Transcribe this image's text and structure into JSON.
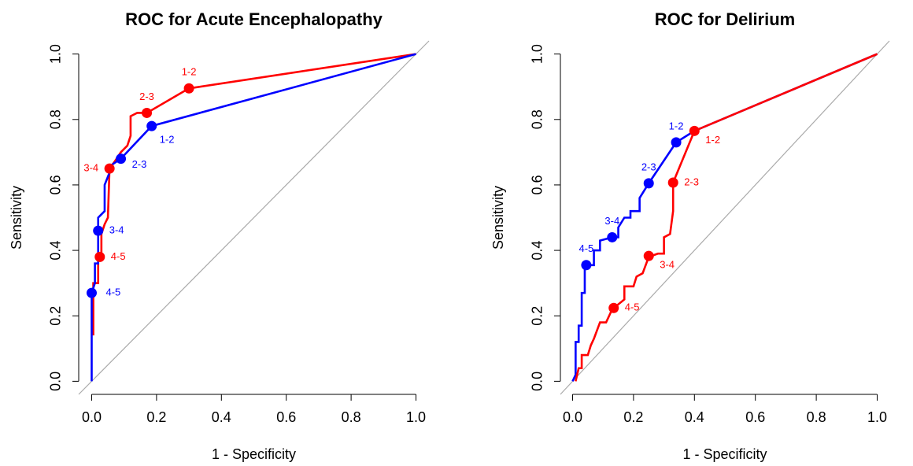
{
  "chart_data": [
    {
      "type": "line",
      "title": "ROC for Acute Encephalopathy",
      "xlabel": "1 - Specificity",
      "ylabel": "Sensitivity",
      "xlim": [
        -0.04,
        1.04
      ],
      "ylim": [
        -0.04,
        1.04
      ],
      "xticks": [
        {
          "value": 0,
          "label": "0.0"
        },
        0.2,
        0.4,
        0.6,
        0.8,
        {
          "value": 1,
          "label": "1.0"
        }
      ],
      "yticks": [
        {
          "value": 0,
          "label": "0.0"
        },
        0.2,
        0.4,
        0.6,
        0.8,
        {
          "value": 1,
          "label": "1.0"
        }
      ],
      "series": [
        {
          "color": "#ff0000",
          "x": [
            0.005,
            0.005,
            0.02,
            0.02,
            0.03,
            0.03,
            0.04,
            0.05,
            0.055,
            0.07,
            0.09,
            0.11,
            0.12,
            0.12,
            0.14,
            0.17,
            0.3,
            1.0
          ],
          "values": [
            0.14,
            0.3,
            0.3,
            0.38,
            0.38,
            0.45,
            0.48,
            0.5,
            0.65,
            0.67,
            0.7,
            0.72,
            0.75,
            0.81,
            0.82,
            0.82,
            0.895,
            1.0
          ],
          "cutoffs": {
            "x": [
              0.3,
              0.17,
              0.055,
              0.025
            ],
            "values": [
              0.895,
              0.82,
              0.65,
              0.38
            ],
            "labels": [
              "1-2",
              "2-3",
              "3-4",
              "4-5"
            ]
          }
        },
        {
          "color": "#0000ff",
          "x": [
            0.0,
            0.0,
            0.01,
            0.01,
            0.02,
            0.02,
            0.02,
            0.03,
            0.04,
            0.04,
            0.06,
            0.06,
            0.09,
            0.185,
            1.0
          ],
          "values": [
            0.0,
            0.27,
            0.3,
            0.36,
            0.36,
            0.46,
            0.5,
            0.51,
            0.52,
            0.6,
            0.65,
            0.66,
            0.68,
            0.78,
            1.0
          ],
          "cutoffs": {
            "x": [
              0.185,
              0.09,
              0.02,
              0.0
            ],
            "values": [
              0.78,
              0.68,
              0.46,
              0.27
            ],
            "labels": [
              "1-2",
              "2-3",
              "3-4",
              "4-5"
            ]
          }
        }
      ]
    },
    {
      "type": "line",
      "title": "ROC for Delirium",
      "xlabel": "1 - Specificity",
      "ylabel": "Sensitivity",
      "xlim": [
        -0.04,
        1.04
      ],
      "ylim": [
        -0.04,
        1.04
      ],
      "xticks": [
        {
          "value": 0,
          "label": "0.0"
        },
        0.2,
        0.4,
        0.6,
        0.8,
        {
          "value": 1,
          "label": "1.0"
        }
      ],
      "yticks": [
        {
          "value": 0,
          "label": "0.0"
        },
        0.2,
        0.4,
        0.6,
        0.8,
        {
          "value": 1,
          "label": "1.0"
        }
      ],
      "series": [
        {
          "color": "#0000ff",
          "x": [
            0.0,
            0.01,
            0.01,
            0.02,
            0.02,
            0.03,
            0.03,
            0.04,
            0.04,
            0.07,
            0.07,
            0.09,
            0.09,
            0.13,
            0.15,
            0.15,
            0.17,
            0.19,
            0.19,
            0.22,
            0.22,
            0.25,
            0.34,
            0.4,
            1.0
          ],
          "values": [
            0.0,
            0.02,
            0.12,
            0.12,
            0.17,
            0.17,
            0.27,
            0.27,
            0.355,
            0.355,
            0.4,
            0.4,
            0.43,
            0.44,
            0.44,
            0.47,
            0.5,
            0.5,
            0.52,
            0.52,
            0.56,
            0.605,
            0.73,
            0.765,
            1.0
          ],
          "cutoffs": {
            "x": [
              0.34,
              0.25,
              0.13,
              0.045
            ],
            "values": [
              0.73,
              0.605,
              0.44,
              0.355
            ],
            "labels": [
              "1-2",
              "2-3",
              "3-4",
              "4-5"
            ]
          }
        },
        {
          "color": "#ff0000",
          "x": [
            0.01,
            0.02,
            0.03,
            0.03,
            0.05,
            0.06,
            0.07,
            0.09,
            0.11,
            0.13,
            0.17,
            0.17,
            0.2,
            0.21,
            0.23,
            0.25,
            0.28,
            0.3,
            0.3,
            0.32,
            0.33,
            0.33,
            0.4,
            1.0
          ],
          "values": [
            0.0,
            0.04,
            0.04,
            0.08,
            0.08,
            0.11,
            0.13,
            0.18,
            0.18,
            0.22,
            0.25,
            0.29,
            0.29,
            0.32,
            0.33,
            0.38,
            0.39,
            0.39,
            0.44,
            0.45,
            0.52,
            0.607,
            0.765,
            1.0
          ],
          "cutoffs": {
            "x": [
              0.4,
              0.33,
              0.25,
              0.135
            ],
            "values": [
              0.765,
              0.607,
              0.383,
              0.224
            ],
            "labels": [
              "1-2",
              "2-3",
              "3-4",
              "4-5"
            ]
          }
        }
      ]
    }
  ]
}
